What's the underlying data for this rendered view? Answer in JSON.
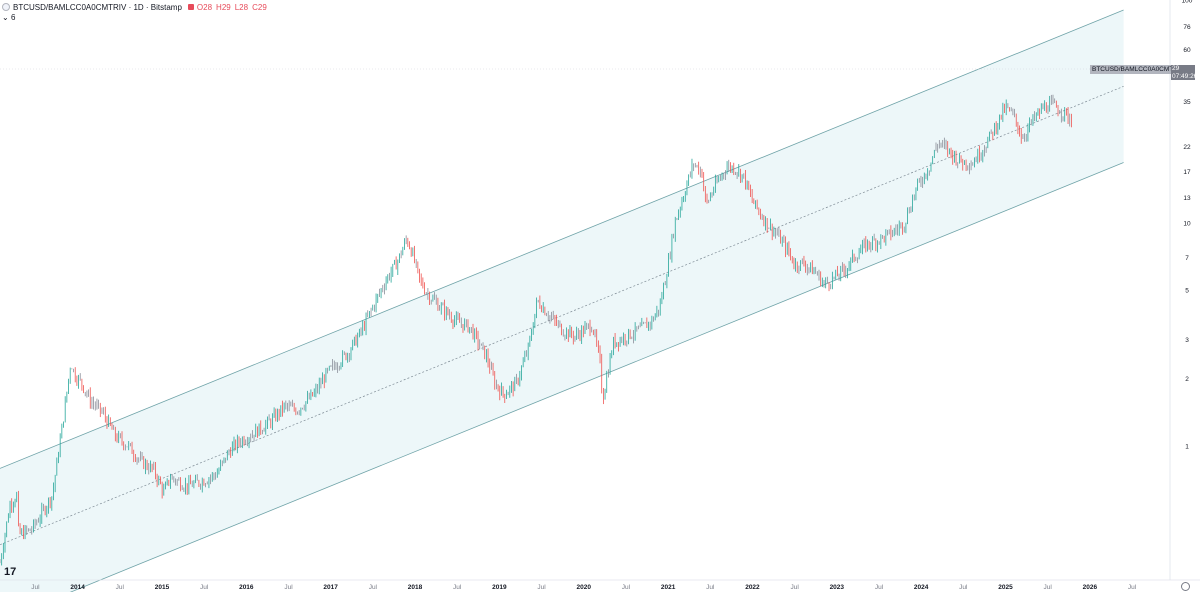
{
  "header": {
    "symbol_title": "BTCUSD/BAMLCC0A0CMTRIV · 1D · Bitstamp",
    "open": "O28",
    "high": "H29",
    "low": "L28",
    "close": "C29",
    "sub_label": "6"
  },
  "price_tag": {
    "label": "BTCUSD/BAMLCC0A0CMTRIV",
    "value": "29",
    "countdown": "07:49:26"
  },
  "colors": {
    "up": "#26a69a",
    "down": "#ef5350",
    "neutral": "#8a8e99",
    "channel_line": "#6fa3a8",
    "channel_fill": "#e9f5f7",
    "dotted": "#7d8a94",
    "crosshair": "#d1d4dc"
  },
  "chart_data": {
    "type": "line",
    "scale": "log",
    "ylim": [
      0.25,
      100
    ],
    "y_ticks": [
      100,
      76,
      60,
      46,
      35,
      22,
      17,
      13,
      10,
      7,
      5,
      3,
      2,
      1
    ],
    "x_ticks": [
      "Jul",
      "2014",
      "Jul",
      "2015",
      "Jul",
      "2016",
      "Jul",
      "2017",
      "Jul",
      "2018",
      "Jul",
      "2019",
      "Jul",
      "2020",
      "Jul",
      "2021",
      "Jul",
      "2022",
      "Jul",
      "2023",
      "Jul",
      "2024",
      "Jul",
      "2025",
      "Jul",
      "2026",
      "Jul"
    ],
    "x_tick_times": [
      2013.5,
      2014,
      2014.5,
      2015,
      2015.5,
      2016,
      2016.5,
      2017,
      2017.5,
      2018,
      2018.5,
      2019,
      2019.5,
      2020,
      2020.5,
      2021,
      2021.5,
      2022,
      2022.5,
      2023,
      2023.5,
      2024,
      2024.5,
      2025,
      2025.5,
      2026,
      2026.5
    ],
    "xlim": [
      2013.08,
      2026.95
    ],
    "series": [
      {
        "x": [
          2013.08,
          2013.2,
          2013.28,
          2013.3,
          2013.45,
          2013.55,
          2013.7,
          2013.85,
          2013.92,
          2013.96,
          2014.05,
          2014.15,
          2014.3,
          2014.45,
          2014.6,
          2014.75,
          2014.9,
          2015.02,
          2015.1,
          2015.3,
          2015.5,
          2015.65,
          2015.8,
          2015.92,
          2016.1,
          2016.3,
          2016.45,
          2016.6,
          2016.8,
          2016.95,
          2017.05,
          2017.2,
          2017.35,
          2017.5,
          2017.65,
          2017.8,
          2017.9,
          2017.96,
          2018.05,
          2018.15,
          2018.3,
          2018.5,
          2018.65,
          2018.85,
          2018.95,
          2019.05,
          2019.2,
          2019.35,
          2019.45,
          2019.6,
          2019.75,
          2019.9,
          2020.0,
          2020.1,
          2020.2,
          2020.22,
          2020.35,
          2020.5,
          2020.65,
          2020.8,
          2020.9,
          2021.0,
          2021.08,
          2021.2,
          2021.3,
          2021.4,
          2021.45,
          2021.55,
          2021.7,
          2021.8,
          2021.9,
          2022.0,
          2022.15,
          2022.3,
          2022.42,
          2022.5,
          2022.6,
          2022.75,
          2022.85,
          2022.95,
          2023.1,
          2023.2,
          2023.35,
          2023.5,
          2023.65,
          2023.8,
          2023.95,
          2024.1,
          2024.2,
          2024.3,
          2024.45,
          2024.6,
          2024.75,
          2024.9,
          2025.0,
          2025.1,
          2025.2,
          2025.3,
          2025.45,
          2025.55,
          2025.7,
          2025.8
        ],
        "y": [
          0.3,
          0.55,
          0.6,
          0.4,
          0.42,
          0.48,
          0.6,
          1.5,
          2.4,
          2.1,
          1.9,
          1.6,
          1.4,
          1.1,
          1.0,
          0.85,
          0.78,
          0.62,
          0.72,
          0.66,
          0.7,
          0.75,
          0.95,
          1.05,
          1.15,
          1.3,
          1.5,
          1.45,
          1.7,
          2.1,
          2.3,
          2.6,
          3.2,
          4.2,
          5.5,
          6.8,
          8.5,
          7.5,
          5.6,
          4.8,
          4.2,
          3.6,
          3.4,
          2.5,
          1.9,
          1.7,
          1.9,
          2.8,
          4.5,
          3.8,
          3.3,
          3.1,
          3.3,
          3.5,
          2.3,
          1.6,
          2.9,
          3.1,
          3.3,
          3.6,
          4.2,
          6.5,
          10.0,
          14.0,
          18.5,
          17.0,
          12.0,
          14.5,
          18.0,
          17.5,
          16.0,
          12.5,
          10.2,
          8.8,
          7.5,
          6.5,
          6.6,
          6.0,
          5.3,
          5.6,
          6.2,
          7.0,
          8.0,
          8.4,
          9.0,
          10.0,
          14.5,
          18.0,
          23.0,
          21.5,
          19.0,
          18.5,
          22.0,
          28.0,
          33.0,
          30.0,
          24.0,
          28.0,
          33.0,
          34.0,
          31.0,
          28.5
        ]
      }
    ],
    "channel": {
      "start": [
        2013.08,
        0.36
      ],
      "end": [
        2026.4,
        41.0
      ],
      "upper_offset_factor": 2.2,
      "lower_offset_factor": 0.455
    },
    "last_value": 29,
    "grid": false
  }
}
